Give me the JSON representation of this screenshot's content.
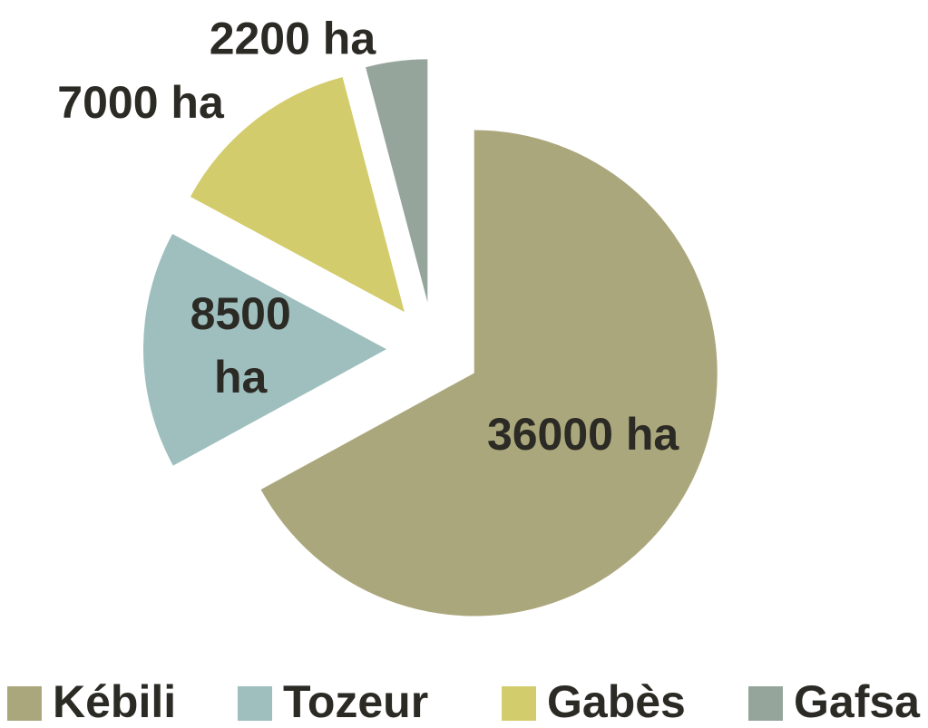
{
  "chart_data": {
    "type": "pie",
    "categories": [
      "Kébili",
      "Tozeur",
      "Gabès",
      "Gafsa"
    ],
    "values": [
      36000,
      8500,
      7000,
      2200
    ],
    "value_labels": [
      "36000 ha",
      "8500 ha",
      "7000 ha",
      "2200 ha"
    ],
    "colors": [
      "#aba77c",
      "#9ebfbe",
      "#d3cc6c",
      "#95a59c"
    ],
    "exploded": true,
    "legend": "bottom"
  }
}
